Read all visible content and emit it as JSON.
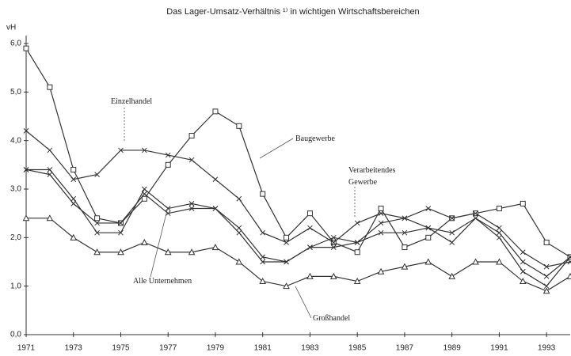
{
  "chart_data": {
    "type": "line",
    "title": "Das Lager-Umsatz-Verhältnis ¹⁾ in wichtigen Wirtschaftsbereichen",
    "y_unit": "vH",
    "x": [
      1971,
      1972,
      1973,
      1974,
      1975,
      1976,
      1977,
      1978,
      1979,
      1980,
      1981,
      1982,
      1983,
      1984,
      1985,
      1986,
      1987,
      1988,
      1989,
      1990,
      1991,
      1992,
      1993,
      1994
    ],
    "xlim": [
      1971,
      1994
    ],
    "xticks": [
      1971,
      1973,
      1975,
      1977,
      1979,
      1981,
      1983,
      1985,
      1987,
      1989,
      1991,
      1993
    ],
    "ylim": [
      0,
      6
    ],
    "yticks": [
      {
        "value": 0,
        "label": "0,0"
      },
      {
        "value": 1,
        "label": "1,0"
      },
      {
        "value": 2,
        "label": "2,0"
      },
      {
        "value": 3,
        "label": "3,0"
      },
      {
        "value": 4,
        "label": "4,0"
      },
      {
        "value": 5,
        "label": "5,0"
      },
      {
        "value": 6,
        "label": "6,0"
      }
    ],
    "series": [
      {
        "name": "Baugewerbe",
        "color": "#333333",
        "marker": "square",
        "values": [
          5.9,
          5.1,
          3.4,
          2.4,
          2.3,
          2.8,
          3.5,
          4.1,
          4.6,
          4.3,
          2.9,
          2.0,
          2.5,
          1.9,
          1.7,
          2.6,
          1.8,
          2.0,
          2.4,
          2.5,
          2.6,
          2.7,
          1.9,
          1.6
        ]
      },
      {
        "name": "Einzelhandel",
        "color": "#333333",
        "marker": "x",
        "values": [
          4.2,
          3.8,
          3.2,
          3.3,
          3.8,
          3.8,
          3.7,
          3.6,
          3.2,
          2.8,
          2.1,
          1.9,
          2.2,
          1.9,
          2.3,
          2.5,
          2.4,
          2.6,
          2.4,
          2.5,
          2.2,
          1.7,
          1.4,
          1.5
        ]
      },
      {
        "name": "Verarbeitendes Gewerbe",
        "color": "#333333",
        "marker": "x",
        "values": [
          3.4,
          3.4,
          2.8,
          2.1,
          2.1,
          3.0,
          2.6,
          2.7,
          2.6,
          2.2,
          1.6,
          1.5,
          1.8,
          1.8,
          1.9,
          2.3,
          2.4,
          2.2,
          2.1,
          2.4,
          2.1,
          1.5,
          1.2,
          1.6
        ]
      },
      {
        "name": "Alle Unternehmen",
        "color": "#333333",
        "marker": "x",
        "values": [
          3.4,
          3.3,
          2.7,
          2.3,
          2.3,
          2.9,
          2.5,
          2.6,
          2.6,
          2.1,
          1.5,
          1.5,
          1.8,
          2.0,
          1.9,
          2.1,
          2.1,
          2.2,
          1.9,
          2.4,
          2.0,
          1.3,
          1.0,
          1.6
        ]
      },
      {
        "name": "Großhandel",
        "color": "#333333",
        "marker": "triangle",
        "values": [
          2.4,
          2.4,
          2.0,
          1.7,
          1.7,
          1.9,
          1.7,
          1.7,
          1.8,
          1.5,
          1.1,
          1.0,
          1.2,
          1.2,
          1.1,
          1.3,
          1.4,
          1.5,
          1.2,
          1.5,
          1.5,
          1.1,
          0.9,
          1.2
        ]
      }
    ]
  }
}
